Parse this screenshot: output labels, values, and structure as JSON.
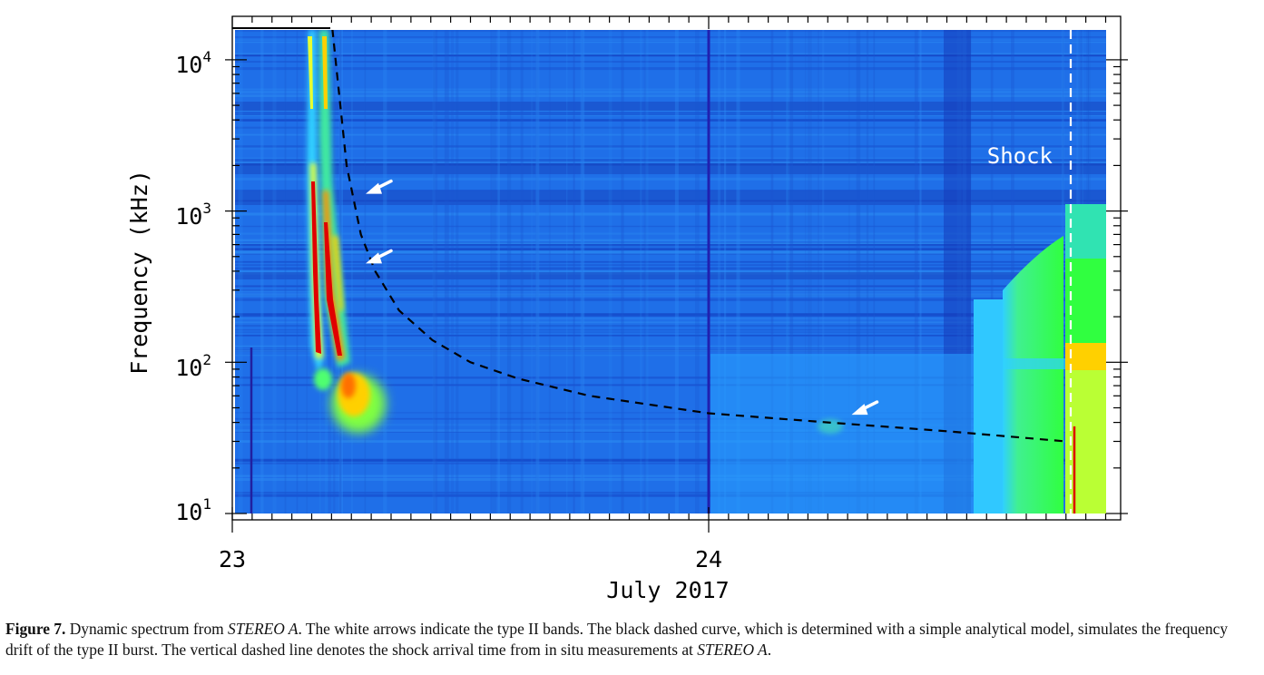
{
  "chart_data": {
    "type": "heatmap",
    "title": "",
    "xlabel": "July 2017",
    "ylabel": "Frequency (kHz)",
    "y_scale": "log",
    "y_range_kHz": [
      10,
      17000
    ],
    "x_range_day": [
      23.0,
      24.83
    ],
    "x_ticks": [
      {
        "value": 23,
        "label": "23"
      },
      {
        "value": 24,
        "label": "24"
      }
    ],
    "y_ticks": [
      {
        "value": 10,
        "base": "10",
        "exp": "1"
      },
      {
        "value": 100,
        "base": "10",
        "exp": "2"
      },
      {
        "value": 1000,
        "base": "10",
        "exp": "3"
      },
      {
        "value": 10000,
        "base": "10",
        "exp": "4"
      }
    ],
    "colormap": [
      "#1030c0",
      "#2080ff",
      "#30d0ff",
      "#50ff70",
      "#e8ff30",
      "#ffb000",
      "#e00000"
    ],
    "analytical_model_curve": {
      "style": "black dashed",
      "points": [
        {
          "day": 23.21,
          "kHz": 16000
        },
        {
          "day": 23.22,
          "kHz": 8000
        },
        {
          "day": 23.24,
          "kHz": 2000
        },
        {
          "day": 23.27,
          "kHz": 700
        },
        {
          "day": 23.3,
          "kHz": 400
        },
        {
          "day": 23.35,
          "kHz": 220
        },
        {
          "day": 23.42,
          "kHz": 140
        },
        {
          "day": 23.5,
          "kHz": 100
        },
        {
          "day": 23.6,
          "kHz": 78
        },
        {
          "day": 23.75,
          "kHz": 60
        },
        {
          "day": 24.0,
          "kHz": 46
        },
        {
          "day": 24.25,
          "kHz": 40
        },
        {
          "day": 24.5,
          "kHz": 35
        },
        {
          "day": 24.75,
          "kHz": 30
        }
      ]
    },
    "shock_arrival": {
      "day": 24.76,
      "label": "Shock",
      "style": "white dashed vertical line"
    },
    "type_ii_arrows": [
      {
        "day": 23.28,
        "kHz": 1300
      },
      {
        "day": 23.28,
        "kHz": 450
      },
      {
        "day": 24.3,
        "kHz": 45
      }
    ]
  },
  "caption": {
    "figure_label": "Figure 7.",
    "t1": " Dynamic spectrum from ",
    "i1": "STEREO A",
    "t2": ". The white arrows indicate the type II bands. The black dashed curve, which is determined with a simple analytical model, simulates the frequency drift of the type II burst. The vertical dashed line denotes the shock arrival time from in situ measurements at ",
    "i2": "STEREO A",
    "t3": "."
  }
}
